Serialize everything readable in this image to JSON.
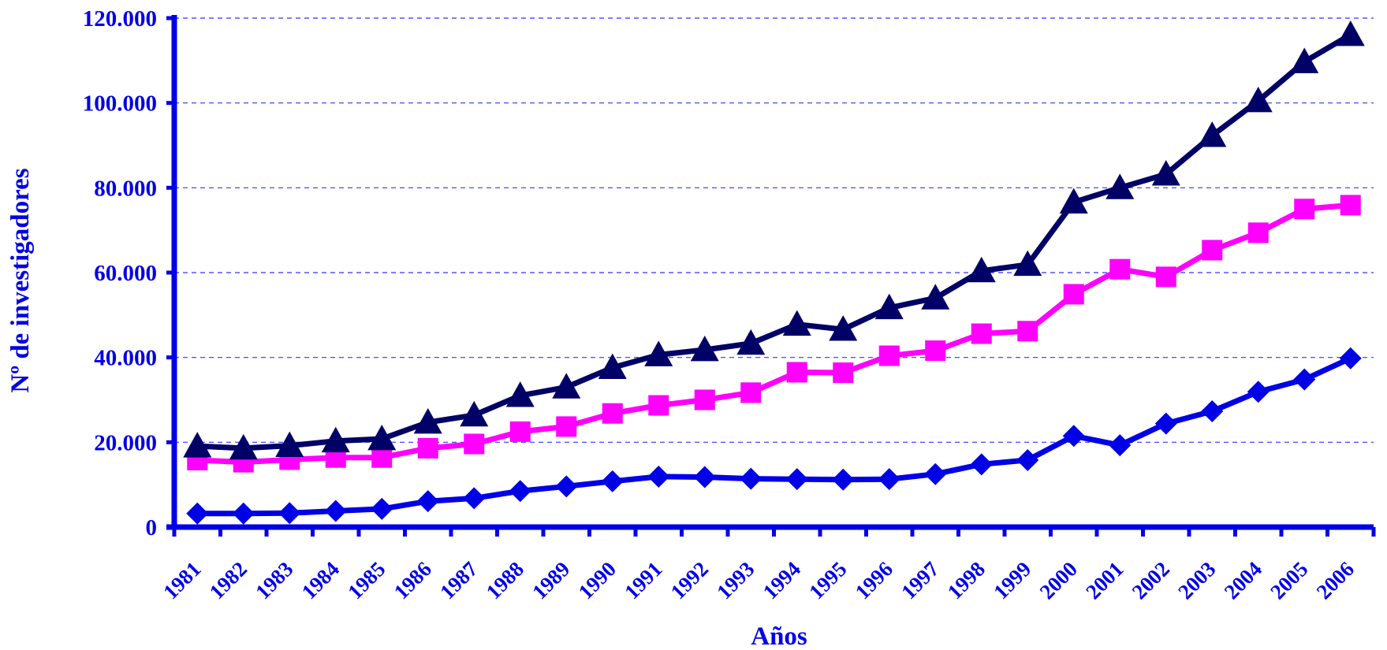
{
  "chart_data": {
    "type": "line",
    "title": "",
    "xlabel": "Años",
    "ylabel": "Nº de investigadores",
    "ylim": [
      0,
      120000
    ],
    "y_ticks": [
      0,
      20000,
      40000,
      60000,
      80000,
      100000,
      120000
    ],
    "y_tick_labels": [
      "0",
      "20.000",
      "40.000",
      "60.000",
      "80.000",
      "100.000",
      "120.000"
    ],
    "grid": "horizontal dashed",
    "categories": [
      "1981",
      "1982",
      "1983",
      "1984",
      "1985",
      "1986",
      "1987",
      "1988",
      "1989",
      "1990",
      "1991",
      "1992",
      "1993",
      "1994",
      "1995",
      "1996",
      "1997",
      "1998",
      "1999",
      "2000",
      "2001",
      "2002",
      "2003",
      "2004",
      "2005",
      "2006"
    ],
    "series": [
      {
        "marker": "diamond",
        "color": "#0000e6",
        "values": [
          3200,
          3200,
          3300,
          3800,
          4300,
          6100,
          6800,
          8500,
          9600,
          10800,
          11900,
          11800,
          11400,
          11300,
          11200,
          11300,
          12500,
          14800,
          15800,
          21500,
          19300,
          24400,
          27300,
          31900,
          34800,
          39800
        ]
      },
      {
        "marker": "square",
        "color": "#ff00ff",
        "values": [
          15800,
          15300,
          15900,
          16400,
          16400,
          18600,
          19600,
          22500,
          23700,
          26800,
          28700,
          30000,
          31700,
          36500,
          36400,
          40400,
          41600,
          45600,
          46200,
          54900,
          60800,
          59000,
          65300,
          69400,
          75000,
          75900
        ]
      },
      {
        "marker": "triangle",
        "color": "#000066",
        "values": [
          19100,
          18600,
          19200,
          20300,
          20800,
          24700,
          26400,
          31000,
          33000,
          37600,
          40600,
          41800,
          43300,
          47800,
          46600,
          51700,
          54000,
          60400,
          61900,
          76600,
          80000,
          83200,
          92300,
          100500,
          109700,
          116100
        ]
      }
    ]
  }
}
